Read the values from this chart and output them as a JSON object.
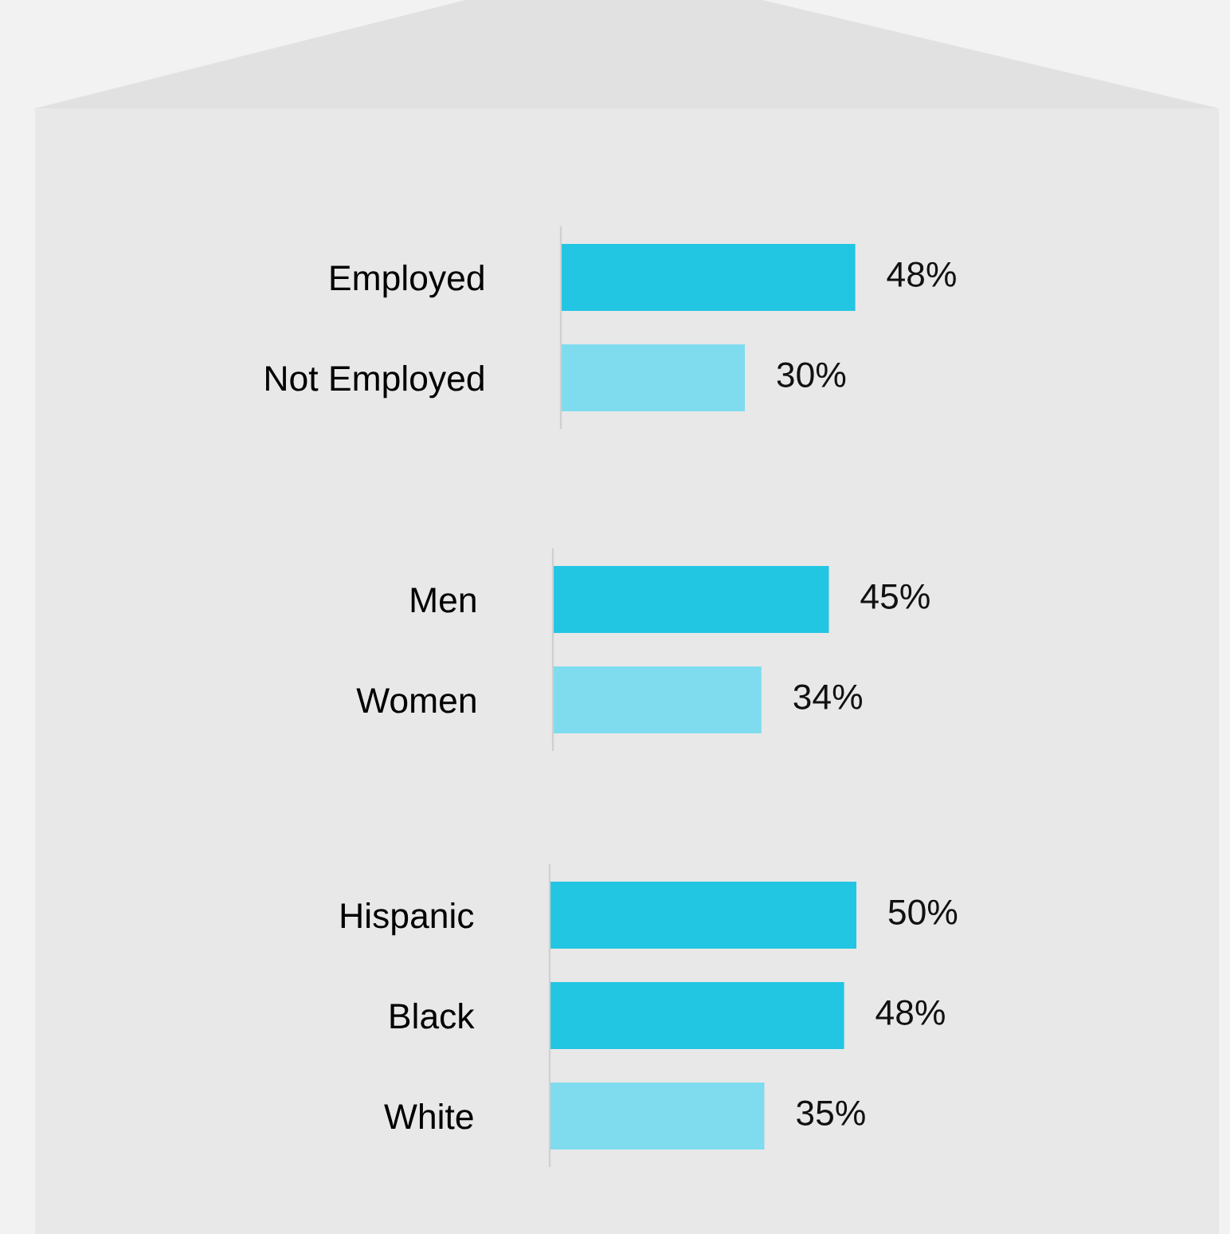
{
  "chart_data": [
    {
      "type": "bar",
      "orientation": "horizontal",
      "categories": [
        "Employed",
        "Not Employed"
      ],
      "values": [
        48,
        30
      ],
      "value_labels": [
        "48%",
        "30%"
      ],
      "colors": [
        "#22c5e2",
        "#7edcee"
      ],
      "tick_labels": "y"
    },
    {
      "type": "bar",
      "orientation": "horizontal",
      "categories": [
        "Men",
        "Women"
      ],
      "values": [
        45,
        34
      ],
      "value_labels": [
        "45%",
        "34%"
      ],
      "colors": [
        "#22c5e2",
        "#7edcee"
      ],
      "tick_labels": "y"
    },
    {
      "type": "bar",
      "orientation": "horizontal",
      "categories": [
        "Hispanic",
        "Black",
        "White"
      ],
      "values": [
        50,
        48,
        35
      ],
      "value_labels": [
        "50%",
        "48%",
        "35%"
      ],
      "colors": [
        "#22c5e2",
        "#22c5e2",
        "#7edcee"
      ],
      "tick_labels": "y"
    }
  ]
}
